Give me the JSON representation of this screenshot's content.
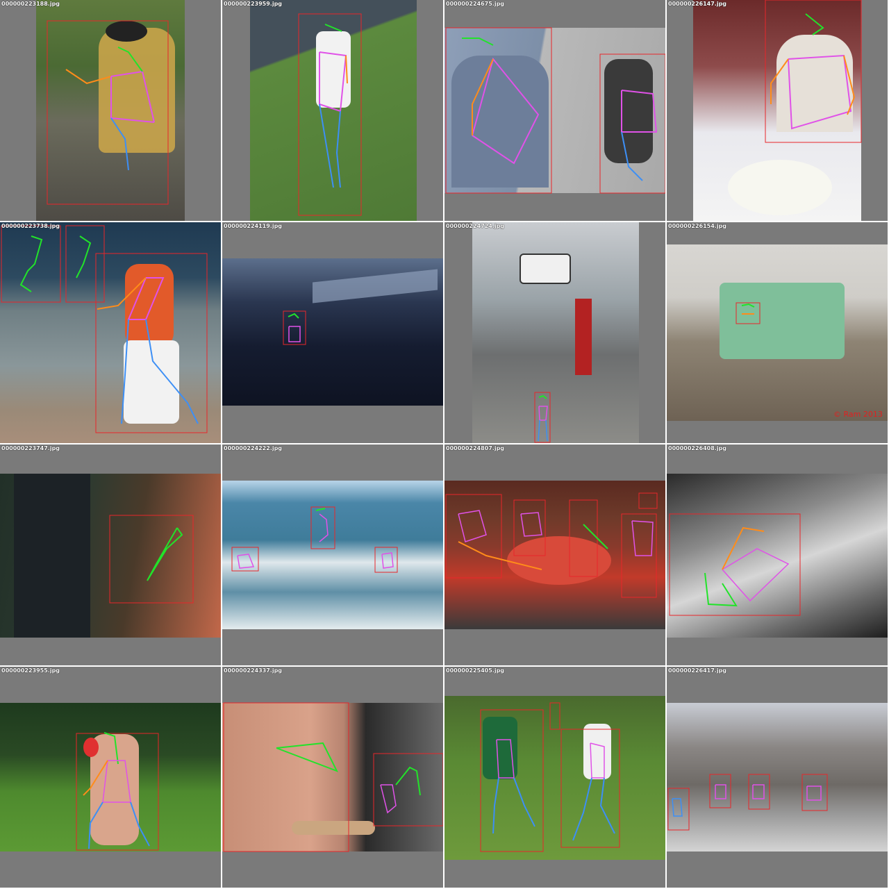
{
  "tiles": [
    {
      "filename": "000000223188.jpg"
    },
    {
      "filename": "000000223959.jpg"
    },
    {
      "filename": "000000224675.jpg"
    },
    {
      "filename": "000000226147.jpg"
    },
    {
      "filename": "000000223738.jpg"
    },
    {
      "filename": "000000224119.jpg"
    },
    {
      "filename": "000000224724.jpg"
    },
    {
      "filename": "000000226154.jpg",
      "watermark": "© Ram 2013"
    },
    {
      "filename": "000000223747.jpg"
    },
    {
      "filename": "000000224222.jpg"
    },
    {
      "filename": "000000224807.jpg"
    },
    {
      "filename": "000000226408.jpg"
    },
    {
      "filename": "000000223955.jpg"
    },
    {
      "filename": "000000224337.jpg"
    },
    {
      "filename": "000000225405.jpg"
    },
    {
      "filename": "000000226417.jpg"
    }
  ],
  "colors": {
    "padding": "#7a7a7a",
    "bbox": "#e8262a",
    "head": "#22e32a",
    "left_limb": "#ff8c1a",
    "right_limb": "#3d8ff5",
    "torso": "#e052e8"
  }
}
